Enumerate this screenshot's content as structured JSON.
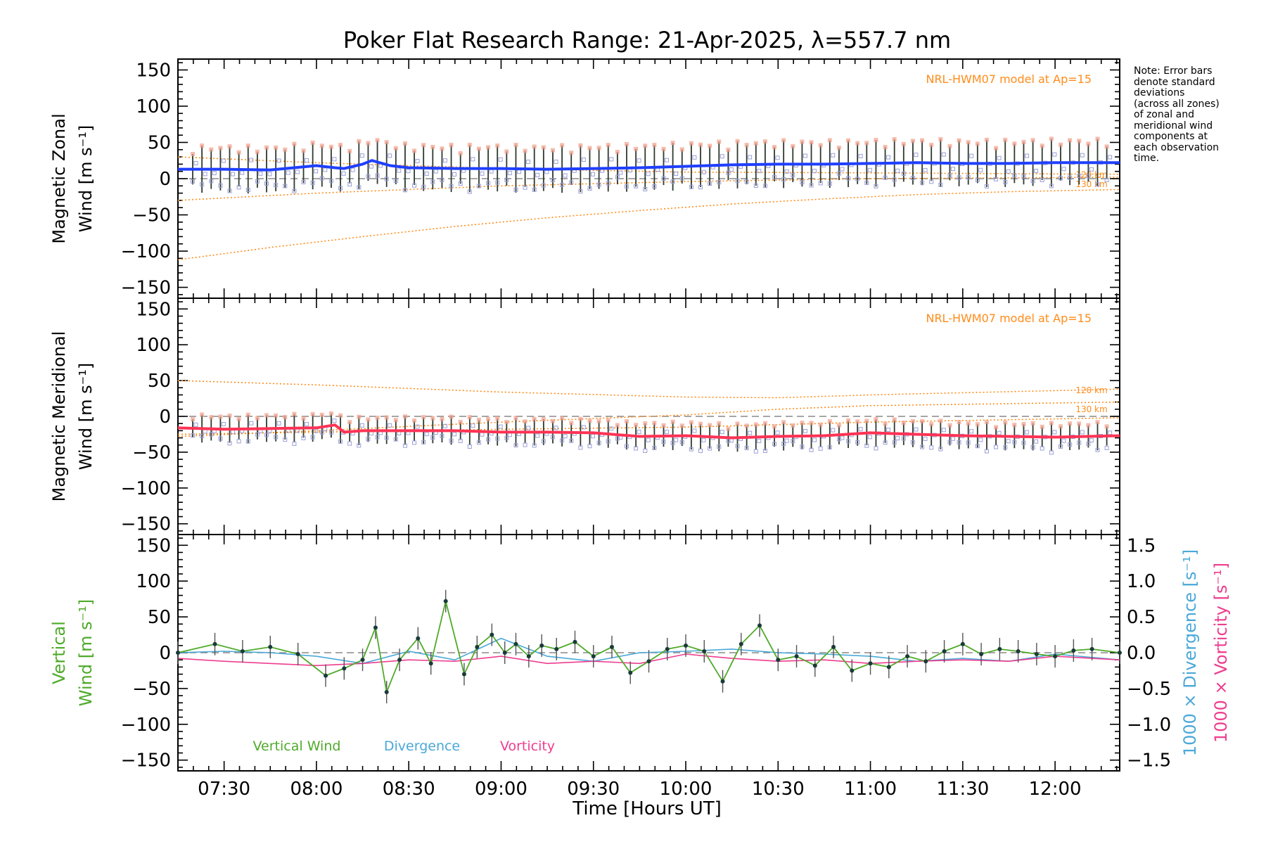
{
  "chart_data": {
    "title": "Poker Flat Research Range: 21-Apr-2025, λ=557.7 nm",
    "xlabel": "Time [Hours UT]",
    "x_range_hours": [
      7.25,
      12.35
    ],
    "x_ticks": [
      "07:30",
      "08:00",
      "08:30",
      "09:00",
      "09:30",
      "10:00",
      "10:30",
      "11:00",
      "11:30",
      "12:00"
    ],
    "x_tick_hours": [
      7.5,
      8.0,
      8.5,
      9.0,
      9.5,
      10.0,
      10.5,
      11.0,
      11.5,
      12.0
    ],
    "note": [
      "Note: Error bars",
      "denote standard",
      "deviations",
      "(across all zones)",
      "of zonal and",
      "meridional wind",
      "components at",
      "each observation",
      "time."
    ],
    "model_label": "NRL-HWM07 model at Ap=15",
    "model_altitudes": [
      "120 km",
      "130 km"
    ],
    "colors": {
      "zonal": "#1f3fff",
      "meridional": "#ff3355",
      "vertical": "#4faa2a",
      "divergence": "#4aa8d8",
      "vorticity": "#ee3d8f",
      "model": "#ff8c1a",
      "zone_points": "#9a9fd8",
      "zone_points_alt": "#f2a08c"
    },
    "panels": [
      {
        "name": "zonal",
        "type": "line",
        "ylabel_line1": "Magnetic Zonal",
        "ylabel_line2": "Wind [m s⁻¹]",
        "ylim": [
          -165,
          165
        ],
        "y_ticks": [
          150,
          100,
          50,
          0,
          -50,
          -100,
          -150
        ],
        "model_120km": {
          "x": [
            7.25,
            8.0,
            9.0,
            10.0,
            11.0,
            12.35
          ],
          "y": [
            30,
            22,
            14,
            9,
            8,
            6
          ]
        },
        "model_130km": {
          "x": [
            7.25,
            8.0,
            9.0,
            10.0,
            11.0,
            12.35
          ],
          "y": [
            -30,
            -20,
            -10,
            -4,
            0,
            2
          ]
        },
        "model_low": {
          "x": [
            7.25,
            7.75,
            8.25,
            8.75,
            9.25,
            9.75,
            10.25,
            10.75,
            11.25,
            11.75,
            12.35
          ],
          "y": [
            -112,
            -95,
            -80,
            -66,
            -54,
            -44,
            -35,
            -28,
            -22,
            -18,
            -15
          ]
        },
        "series": {
          "x": [
            7.25,
            7.5,
            7.75,
            8.0,
            8.1,
            8.15,
            8.25,
            8.3,
            8.4,
            8.5,
            8.75,
            9.0,
            9.25,
            9.5,
            9.75,
            10.0,
            10.25,
            10.5,
            10.75,
            11.0,
            11.25,
            11.5,
            11.75,
            12.0,
            12.35
          ],
          "y": [
            13,
            13,
            12,
            18,
            15,
            14,
            20,
            25,
            18,
            15,
            14,
            14,
            13,
            14,
            15,
            17,
            19,
            20,
            20,
            21,
            22,
            21,
            21,
            22,
            22
          ]
        },
        "error_bar_half": 30
      },
      {
        "name": "meridional",
        "type": "line",
        "ylabel_line1": "Magnetic Meridional",
        "ylabel_line2": "Wind [m s⁻¹]",
        "ylim": [
          -165,
          165
        ],
        "y_ticks": [
          150,
          100,
          50,
          0,
          -50,
          -100,
          -150
        ],
        "model_120km": {
          "x": [
            7.25,
            8.0,
            9.0,
            10.0,
            10.5,
            11.0,
            12.35
          ],
          "y": [
            50,
            44,
            34,
            27,
            26,
            30,
            38
          ]
        },
        "model_130km": {
          "x": [
            7.25,
            8.0,
            9.0,
            10.0,
            10.5,
            11.0,
            12.35
          ],
          "y": [
            -28,
            -20,
            -8,
            2,
            10,
            15,
            20
          ]
        },
        "model_low": {
          "x": [
            7.25,
            8.0,
            9.0,
            10.0,
            11.0,
            12.35
          ],
          "y": [
            -25,
            -22,
            -18,
            -15,
            -8,
            -2
          ]
        },
        "series": {
          "x": [
            7.25,
            7.5,
            7.75,
            8.0,
            8.1,
            8.15,
            8.25,
            8.5,
            8.75,
            9.0,
            9.25,
            9.5,
            9.75,
            10.0,
            10.25,
            10.5,
            10.75,
            11.0,
            11.25,
            11.5,
            11.75,
            12.0,
            12.35
          ],
          "y": [
            -16,
            -18,
            -17,
            -16,
            -12,
            -22,
            -20,
            -20,
            -20,
            -22,
            -22,
            -23,
            -28,
            -27,
            -30,
            -28,
            -27,
            -23,
            -25,
            -27,
            -28,
            -29,
            -27
          ]
        },
        "error_bar_half": 18
      },
      {
        "name": "vertical",
        "type": "line",
        "ylabel_line1": "Vertical",
        "ylabel_line2": "Wind [m s⁻¹]",
        "ylim": [
          -165,
          165
        ],
        "y_ticks": [
          150,
          100,
          50,
          0,
          -50,
          -100,
          -150
        ],
        "y2_label_a": "1000 × Divergence [s⁻¹]",
        "y2_label_b": "1000 × Vorticity [s⁻¹]",
        "y2_lim": [
          -1.65,
          1.65
        ],
        "y2_ticks": [
          "1.5",
          "1.0",
          "0.5",
          "0.0",
          "−0.5",
          "−1.0",
          "−1.5"
        ],
        "y2_tick_values": [
          1.5,
          1.0,
          0.5,
          0.0,
          -0.5,
          -1.0,
          -1.5
        ],
        "legend": [
          "Vertical Wind",
          "Divergence",
          "Vorticity"
        ],
        "vertical_wind": {
          "x": [
            7.25,
            7.45,
            7.6,
            7.75,
            7.9,
            8.05,
            8.15,
            8.25,
            8.32,
            8.38,
            8.45,
            8.55,
            8.62,
            8.7,
            8.8,
            8.87,
            8.95,
            9.02,
            9.08,
            9.15,
            9.22,
            9.3,
            9.4,
            9.5,
            9.6,
            9.7,
            9.8,
            9.9,
            10.0,
            10.1,
            10.2,
            10.3,
            10.4,
            10.5,
            10.6,
            10.7,
            10.8,
            10.9,
            11.0,
            11.1,
            11.2,
            11.3,
            11.4,
            11.5,
            11.6,
            11.7,
            11.8,
            11.9,
            12.0,
            12.1,
            12.2,
            12.35
          ],
          "y": [
            0,
            12,
            2,
            8,
            -2,
            -32,
            -22,
            -10,
            35,
            -55,
            -10,
            20,
            -15,
            72,
            -30,
            8,
            25,
            0,
            12,
            -5,
            10,
            5,
            15,
            -5,
            8,
            -28,
            -12,
            5,
            10,
            2,
            -40,
            12,
            38,
            -10,
            -5,
            -18,
            8,
            -25,
            -15,
            -20,
            -5,
            -12,
            2,
            12,
            -2,
            5,
            2,
            -2,
            -5,
            3,
            5,
            0
          ]
        },
        "divergence": {
          "x": [
            7.25,
            7.5,
            7.75,
            8.0,
            8.25,
            8.5,
            8.75,
            9.0,
            9.25,
            9.5,
            9.75,
            10.0,
            10.25,
            10.5,
            10.75,
            11.0,
            11.25,
            11.5,
            11.75,
            12.0,
            12.35
          ],
          "y": [
            0.0,
            0.02,
            0.0,
            -0.05,
            -0.15,
            0.02,
            -0.1,
            0.2,
            -0.05,
            -0.12,
            0.0,
            0.02,
            0.05,
            0.0,
            -0.02,
            -0.05,
            -0.12,
            -0.08,
            -0.12,
            -0.02,
            -0.1
          ]
        },
        "vorticity": {
          "x": [
            7.25,
            7.5,
            7.75,
            8.0,
            8.25,
            8.5,
            8.75,
            9.0,
            9.25,
            9.5,
            9.75,
            10.0,
            10.25,
            10.5,
            10.75,
            11.0,
            11.25,
            11.5,
            11.75,
            12.0,
            12.35
          ],
          "y": [
            -0.08,
            -0.12,
            -0.15,
            -0.18,
            -0.15,
            -0.1,
            -0.12,
            -0.05,
            -0.15,
            -0.12,
            -0.15,
            -0.02,
            -0.08,
            -0.12,
            -0.1,
            -0.15,
            -0.12,
            -0.1,
            -0.12,
            -0.05,
            -0.1
          ]
        }
      }
    ]
  }
}
